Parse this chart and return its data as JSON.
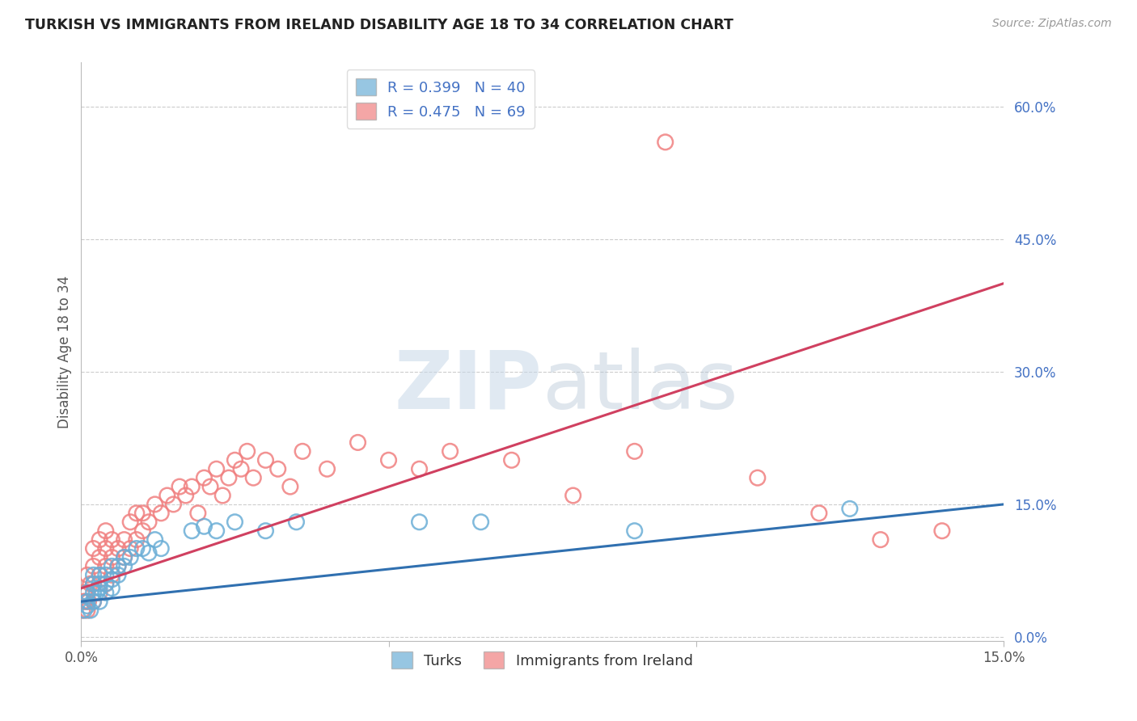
{
  "title": "TURKISH VS IMMIGRANTS FROM IRELAND DISABILITY AGE 18 TO 34 CORRELATION CHART",
  "source": "Source: ZipAtlas.com",
  "ylabel": "Disability Age 18 to 34",
  "xlim": [
    0.0,
    0.15
  ],
  "ylim": [
    -0.005,
    0.65
  ],
  "right_yticks": [
    0.0,
    0.15,
    0.3,
    0.45,
    0.6
  ],
  "right_ytick_labels": [
    "0.0%",
    "15.0%",
    "30.0%",
    "45.0%",
    "60.0%"
  ],
  "xtick_vals": [
    0.0,
    0.05,
    0.1,
    0.15
  ],
  "xtick_labels": [
    "0.0%",
    "",
    "",
    "15.0%"
  ],
  "blue_color": "#6BAED6",
  "pink_color": "#F08080",
  "blue_line_color": "#3070B0",
  "pink_line_color": "#D04060",
  "legend_blue_label": "R = 0.399   N = 40",
  "legend_pink_label": "R = 0.475   N = 69",
  "legend_label_turks": "Turks",
  "legend_label_ireland": "Immigrants from Ireland",
  "watermark_zip": "ZIP",
  "watermark_atlas": "atlas",
  "blue_scatter_x": [
    0.0005,
    0.001,
    0.001,
    0.001,
    0.0015,
    0.002,
    0.002,
    0.002,
    0.002,
    0.0025,
    0.003,
    0.003,
    0.003,
    0.003,
    0.004,
    0.004,
    0.004,
    0.005,
    0.005,
    0.005,
    0.006,
    0.006,
    0.007,
    0.007,
    0.008,
    0.009,
    0.01,
    0.011,
    0.012,
    0.013,
    0.018,
    0.02,
    0.022,
    0.025,
    0.03,
    0.035,
    0.055,
    0.065,
    0.09,
    0.125
  ],
  "blue_scatter_y": [
    0.03,
    0.035,
    0.04,
    0.05,
    0.03,
    0.04,
    0.05,
    0.06,
    0.07,
    0.05,
    0.04,
    0.055,
    0.06,
    0.07,
    0.05,
    0.06,
    0.07,
    0.055,
    0.065,
    0.08,
    0.07,
    0.08,
    0.08,
    0.09,
    0.09,
    0.1,
    0.1,
    0.095,
    0.11,
    0.1,
    0.12,
    0.125,
    0.12,
    0.13,
    0.12,
    0.13,
    0.13,
    0.13,
    0.12,
    0.145
  ],
  "pink_scatter_x": [
    0.0002,
    0.0004,
    0.0005,
    0.0007,
    0.001,
    0.001,
    0.001,
    0.0012,
    0.0015,
    0.002,
    0.002,
    0.002,
    0.002,
    0.003,
    0.003,
    0.003,
    0.003,
    0.004,
    0.004,
    0.004,
    0.004,
    0.005,
    0.005,
    0.005,
    0.006,
    0.006,
    0.007,
    0.007,
    0.008,
    0.008,
    0.009,
    0.009,
    0.01,
    0.01,
    0.011,
    0.012,
    0.013,
    0.014,
    0.015,
    0.016,
    0.017,
    0.018,
    0.019,
    0.02,
    0.021,
    0.022,
    0.023,
    0.024,
    0.025,
    0.026,
    0.027,
    0.028,
    0.03,
    0.032,
    0.034,
    0.036,
    0.04,
    0.045,
    0.05,
    0.055,
    0.06,
    0.07,
    0.08,
    0.09,
    0.095,
    0.11,
    0.12,
    0.13,
    0.14
  ],
  "pink_scatter_y": [
    0.03,
    0.04,
    0.05,
    0.04,
    0.03,
    0.05,
    0.07,
    0.04,
    0.06,
    0.04,
    0.06,
    0.08,
    0.1,
    0.05,
    0.07,
    0.09,
    0.11,
    0.06,
    0.08,
    0.1,
    0.12,
    0.07,
    0.09,
    0.11,
    0.08,
    0.1,
    0.09,
    0.11,
    0.1,
    0.13,
    0.11,
    0.14,
    0.12,
    0.14,
    0.13,
    0.15,
    0.14,
    0.16,
    0.15,
    0.17,
    0.16,
    0.17,
    0.14,
    0.18,
    0.17,
    0.19,
    0.16,
    0.18,
    0.2,
    0.19,
    0.21,
    0.18,
    0.2,
    0.19,
    0.17,
    0.21,
    0.19,
    0.22,
    0.2,
    0.19,
    0.21,
    0.2,
    0.16,
    0.21,
    0.56,
    0.18,
    0.14,
    0.11,
    0.12
  ],
  "blue_line_x": [
    0.0,
    0.15
  ],
  "blue_line_y": [
    0.04,
    0.15
  ],
  "pink_line_x": [
    0.0,
    0.15
  ],
  "pink_line_y": [
    0.055,
    0.4
  ]
}
